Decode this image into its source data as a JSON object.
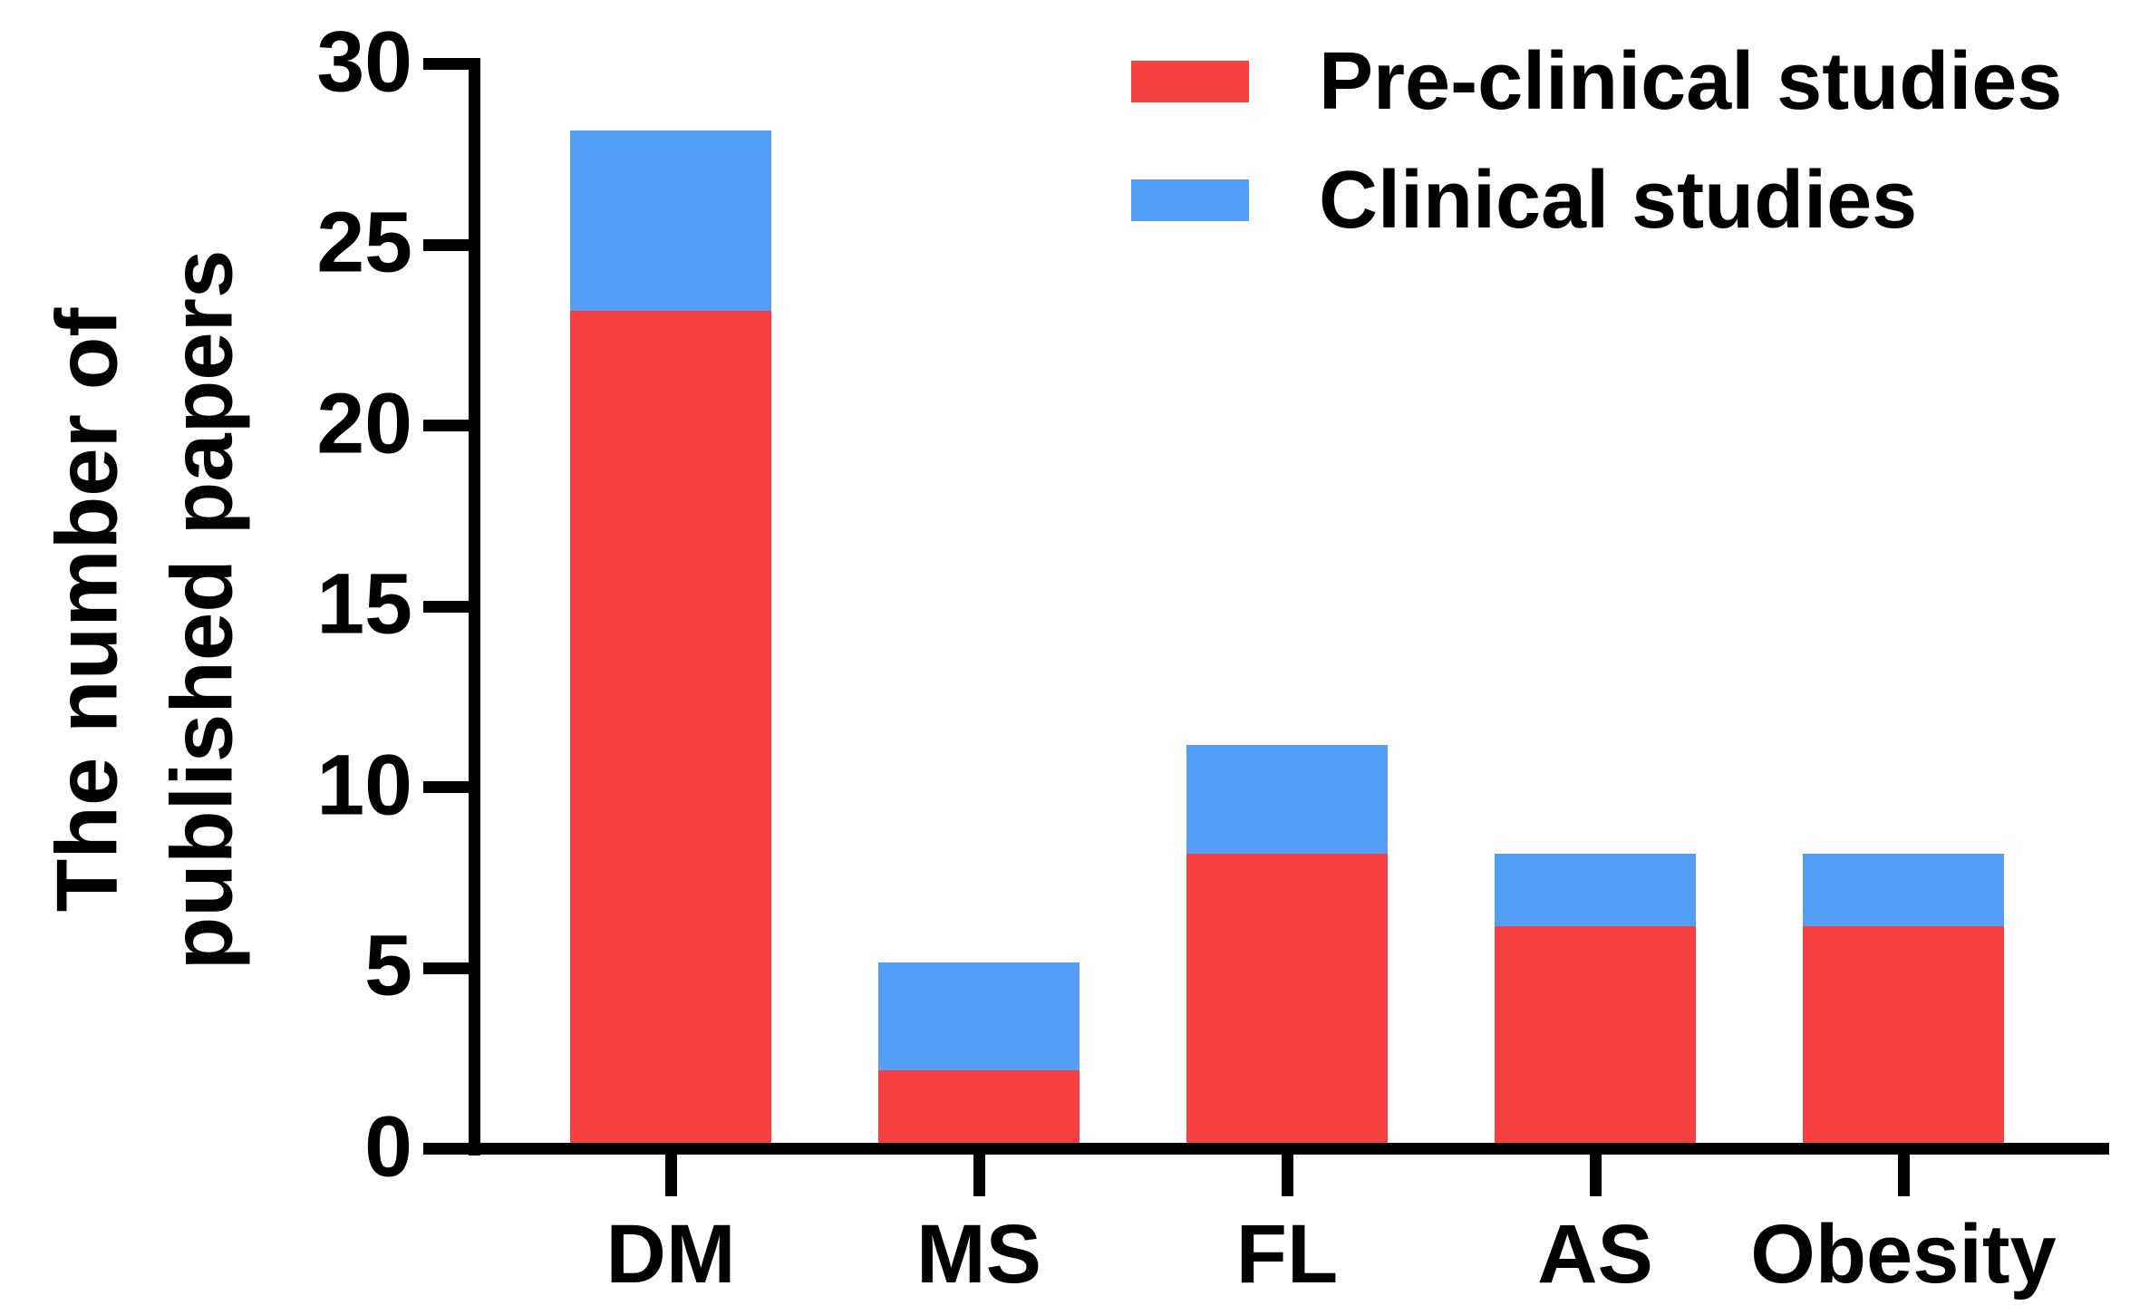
{
  "chart_data": {
    "type": "bar",
    "stacked": true,
    "categories": [
      "DM",
      "MS",
      "FL",
      "AS",
      "Obesity"
    ],
    "series": [
      {
        "name": "Pre-clinical studies",
        "color": "#F74040",
        "values": [
          23,
          2,
          8,
          6,
          6
        ]
      },
      {
        "name": "Clinical studies",
        "color": "#549EF7",
        "values": [
          5,
          3,
          3,
          2,
          2
        ]
      }
    ],
    "totals": [
      28,
      5,
      11,
      8,
      8
    ],
    "ylabel_lines": [
      "The number of",
      "published papers"
    ],
    "yticks": [
      0,
      5,
      10,
      15,
      20,
      25,
      30
    ],
    "ylim": [
      0,
      30
    ],
    "xlabel": "",
    "title": "",
    "grid": false,
    "legend_position": "top-right",
    "axis_color": "#000000",
    "background_color": "#FFFFFF"
  }
}
